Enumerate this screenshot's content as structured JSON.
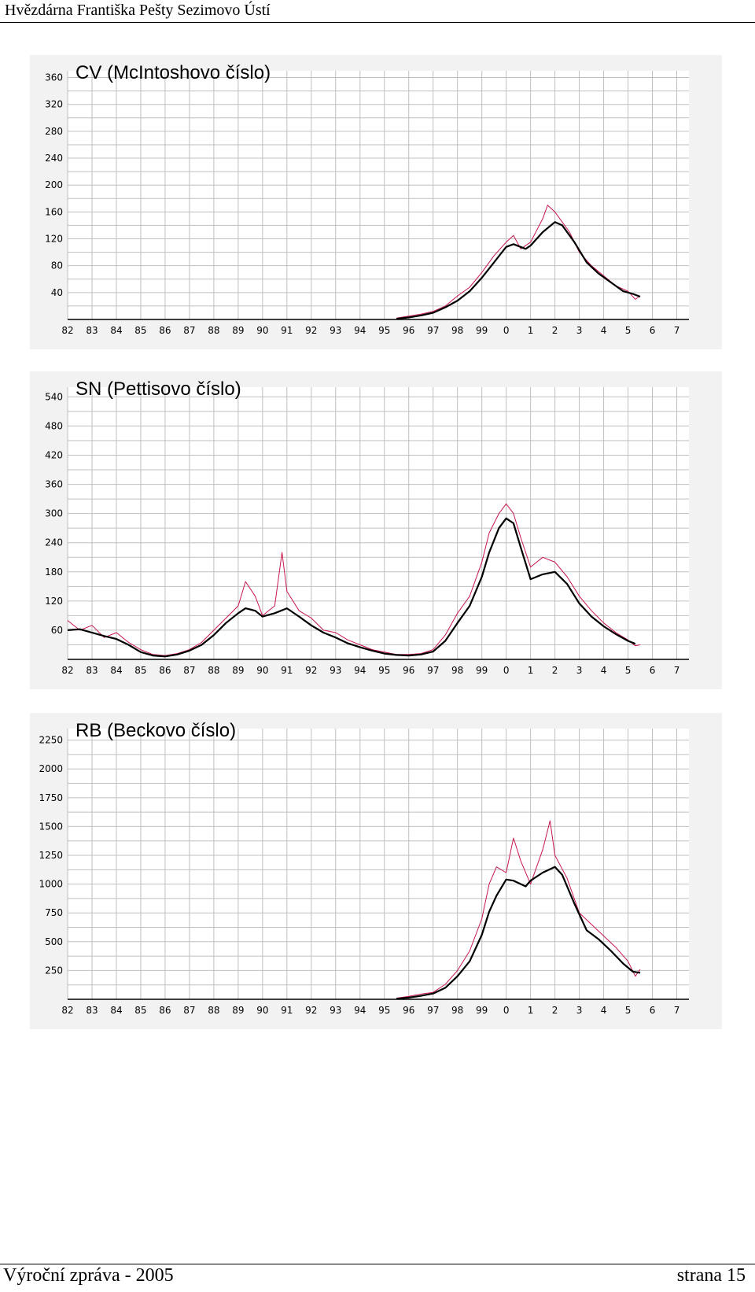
{
  "header": {
    "text": "Hvězdárna Františka Pešty   Sezimovo Ústí"
  },
  "footer": {
    "left": "Výroční zpráva - 2005",
    "right": "strana  15"
  },
  "colors": {
    "raw_series": "#c8174c",
    "smoothed_series": "#000000",
    "grid": "#bfbfbf",
    "plot_bg": "#ffffff"
  },
  "chart_data": [
    {
      "type": "line",
      "title": "CV   (McIntoshovo číslo)",
      "x_tick_labels": [
        "82",
        "83",
        "84",
        "85",
        "86",
        "87",
        "88",
        "89",
        "90",
        "91",
        "92",
        "93",
        "94",
        "95",
        "96",
        "97",
        "98",
        "99",
        "0",
        "1",
        "2",
        "3",
        "4",
        "5",
        "6",
        "7"
      ],
      "xlim": [
        1982,
        2007.5
      ],
      "ylim": [
        0,
        370
      ],
      "y_ticks": [
        40,
        80,
        120,
        160,
        200,
        240,
        280,
        320,
        360
      ],
      "grid": true,
      "series": [
        {
          "role": "monthly",
          "points": [
            [
              1995.5,
              2
            ],
            [
              1996.0,
              5
            ],
            [
              1996.5,
              8
            ],
            [
              1997.0,
              12
            ],
            [
              1997.5,
              20
            ],
            [
              1998.0,
              35
            ],
            [
              1998.5,
              48
            ],
            [
              1999.0,
              70
            ],
            [
              1999.5,
              95
            ],
            [
              2000.0,
              115
            ],
            [
              2000.3,
              125
            ],
            [
              2000.6,
              105
            ],
            [
              2001.0,
              115
            ],
            [
              2001.5,
              150
            ],
            [
              2001.7,
              170
            ],
            [
              2002.0,
              160
            ],
            [
              2002.3,
              145
            ],
            [
              2002.6,
              130
            ],
            [
              2003.0,
              100
            ],
            [
              2003.5,
              80
            ],
            [
              2004.0,
              65
            ],
            [
              2004.5,
              50
            ],
            [
              2005.0,
              42
            ],
            [
              2005.3,
              30
            ],
            [
              2005.5,
              35
            ]
          ]
        },
        {
          "role": "smoothed",
          "points": [
            [
              1995.5,
              1
            ],
            [
              1996.0,
              3
            ],
            [
              1996.5,
              6
            ],
            [
              1997.0,
              10
            ],
            [
              1997.5,
              18
            ],
            [
              1998.0,
              28
            ],
            [
              1998.5,
              42
            ],
            [
              1999.0,
              62
            ],
            [
              1999.5,
              85
            ],
            [
              2000.0,
              108
            ],
            [
              2000.3,
              112
            ],
            [
              2000.8,
              105
            ],
            [
              2001.0,
              110
            ],
            [
              2001.5,
              130
            ],
            [
              2002.0,
              145
            ],
            [
              2002.3,
              140
            ],
            [
              2002.8,
              115
            ],
            [
              2003.3,
              85
            ],
            [
              2003.8,
              68
            ],
            [
              2004.3,
              55
            ],
            [
              2004.8,
              42
            ],
            [
              2005.2,
              38
            ],
            [
              2005.5,
              34
            ]
          ]
        }
      ]
    },
    {
      "type": "line",
      "title": "SN   (Pettisovo číslo)",
      "x_tick_labels": [
        "82",
        "83",
        "84",
        "85",
        "86",
        "87",
        "88",
        "89",
        "90",
        "91",
        "92",
        "93",
        "94",
        "95",
        "96",
        "97",
        "98",
        "99",
        "0",
        "1",
        "2",
        "3",
        "4",
        "5",
        "6",
        "7"
      ],
      "xlim": [
        1982,
        2007.5
      ],
      "ylim": [
        0,
        560
      ],
      "y_ticks": [
        60,
        120,
        180,
        240,
        300,
        360,
        420,
        480,
        540
      ],
      "grid": true,
      "series": [
        {
          "role": "monthly",
          "points": [
            [
              1982.0,
              80
            ],
            [
              1982.5,
              60
            ],
            [
              1983.0,
              70
            ],
            [
              1983.5,
              45
            ],
            [
              1984.0,
              55
            ],
            [
              1984.5,
              35
            ],
            [
              1985.0,
              20
            ],
            [
              1985.5,
              10
            ],
            [
              1986.0,
              8
            ],
            [
              1986.5,
              12
            ],
            [
              1987.0,
              20
            ],
            [
              1987.5,
              35
            ],
            [
              1988.0,
              60
            ],
            [
              1988.5,
              85
            ],
            [
              1989.0,
              110
            ],
            [
              1989.3,
              160
            ],
            [
              1989.7,
              130
            ],
            [
              1990.0,
              90
            ],
            [
              1990.5,
              110
            ],
            [
              1990.8,
              220
            ],
            [
              1991.0,
              140
            ],
            [
              1991.5,
              100
            ],
            [
              1992.0,
              85
            ],
            [
              1992.5,
              60
            ],
            [
              1993.0,
              55
            ],
            [
              1993.5,
              40
            ],
            [
              1994.0,
              30
            ],
            [
              1994.5,
              20
            ],
            [
              1995.0,
              15
            ],
            [
              1995.5,
              10
            ],
            [
              1996.0,
              10
            ],
            [
              1996.5,
              12
            ],
            [
              1997.0,
              20
            ],
            [
              1997.5,
              50
            ],
            [
              1998.0,
              95
            ],
            [
              1998.5,
              130
            ],
            [
              1999.0,
              200
            ],
            [
              1999.3,
              260
            ],
            [
              1999.7,
              300
            ],
            [
              2000.0,
              320
            ],
            [
              2000.3,
              300
            ],
            [
              2000.6,
              250
            ],
            [
              2001.0,
              190
            ],
            [
              2001.5,
              210
            ],
            [
              2002.0,
              200
            ],
            [
              2002.5,
              170
            ],
            [
              2003.0,
              130
            ],
            [
              2003.5,
              100
            ],
            [
              2004.0,
              75
            ],
            [
              2004.5,
              55
            ],
            [
              2005.0,
              40
            ],
            [
              2005.3,
              28
            ],
            [
              2005.5,
              30
            ]
          ]
        },
        {
          "role": "smoothed",
          "points": [
            [
              1982.0,
              60
            ],
            [
              1982.5,
              62
            ],
            [
              1983.0,
              55
            ],
            [
              1983.5,
              48
            ],
            [
              1984.0,
              42
            ],
            [
              1984.5,
              30
            ],
            [
              1985.0,
              15
            ],
            [
              1985.5,
              8
            ],
            [
              1986.0,
              6
            ],
            [
              1986.5,
              10
            ],
            [
              1987.0,
              18
            ],
            [
              1987.5,
              30
            ],
            [
              1988.0,
              50
            ],
            [
              1988.5,
              75
            ],
            [
              1989.0,
              95
            ],
            [
              1989.3,
              105
            ],
            [
              1989.7,
              100
            ],
            [
              1990.0,
              88
            ],
            [
              1990.5,
              95
            ],
            [
              1991.0,
              105
            ],
            [
              1991.5,
              88
            ],
            [
              1992.0,
              70
            ],
            [
              1992.5,
              55
            ],
            [
              1993.0,
              45
            ],
            [
              1993.5,
              33
            ],
            [
              1994.0,
              25
            ],
            [
              1994.5,
              18
            ],
            [
              1995.0,
              12
            ],
            [
              1995.5,
              9
            ],
            [
              1996.0,
              8
            ],
            [
              1996.5,
              10
            ],
            [
              1997.0,
              16
            ],
            [
              1997.5,
              38
            ],
            [
              1998.0,
              75
            ],
            [
              1998.5,
              110
            ],
            [
              1999.0,
              170
            ],
            [
              1999.3,
              220
            ],
            [
              1999.7,
              270
            ],
            [
              2000.0,
              290
            ],
            [
              2000.3,
              280
            ],
            [
              2000.6,
              230
            ],
            [
              2001.0,
              165
            ],
            [
              2001.5,
              175
            ],
            [
              2002.0,
              180
            ],
            [
              2002.5,
              155
            ],
            [
              2003.0,
              115
            ],
            [
              2003.5,
              88
            ],
            [
              2004.0,
              68
            ],
            [
              2004.5,
              52
            ],
            [
              2005.0,
              38
            ],
            [
              2005.3,
              32
            ]
          ]
        }
      ]
    },
    {
      "type": "line",
      "title": "RB   (Beckovo číslo)",
      "x_tick_labels": [
        "82",
        "83",
        "84",
        "85",
        "86",
        "87",
        "88",
        "89",
        "90",
        "91",
        "92",
        "93",
        "94",
        "95",
        "96",
        "97",
        "98",
        "99",
        "0",
        "1",
        "2",
        "3",
        "4",
        "5",
        "6",
        "7"
      ],
      "xlim": [
        1982,
        2007.5
      ],
      "ylim": [
        0,
        2350
      ],
      "y_ticks": [
        250,
        500,
        750,
        1000,
        1250,
        1500,
        1750,
        2000,
        2250
      ],
      "grid": true,
      "series": [
        {
          "role": "monthly",
          "points": [
            [
              1995.5,
              10
            ],
            [
              1996.0,
              25
            ],
            [
              1996.5,
              45
            ],
            [
              1997.0,
              60
            ],
            [
              1997.5,
              130
            ],
            [
              1998.0,
              250
            ],
            [
              1998.5,
              420
            ],
            [
              1999.0,
              700
            ],
            [
              1999.3,
              1000
            ],
            [
              1999.6,
              1150
            ],
            [
              2000.0,
              1100
            ],
            [
              2000.3,
              1400
            ],
            [
              2000.6,
              1200
            ],
            [
              2001.0,
              1000
            ],
            [
              2001.5,
              1300
            ],
            [
              2001.8,
              1550
            ],
            [
              2002.0,
              1250
            ],
            [
              2002.5,
              1050
            ],
            [
              2003.0,
              750
            ],
            [
              2003.5,
              650
            ],
            [
              2004.0,
              550
            ],
            [
              2004.5,
              450
            ],
            [
              2005.0,
              330
            ],
            [
              2005.3,
              200
            ],
            [
              2005.5,
              260
            ]
          ]
        },
        {
          "role": "smoothed",
          "points": [
            [
              1995.5,
              5
            ],
            [
              1996.0,
              15
            ],
            [
              1996.5,
              30
            ],
            [
              1997.0,
              50
            ],
            [
              1997.5,
              100
            ],
            [
              1998.0,
              200
            ],
            [
              1998.5,
              330
            ],
            [
              1999.0,
              560
            ],
            [
              1999.3,
              760
            ],
            [
              1999.6,
              900
            ],
            [
              2000.0,
              1040
            ],
            [
              2000.3,
              1030
            ],
            [
              2000.8,
              980
            ],
            [
              2001.0,
              1030
            ],
            [
              2001.5,
              1100
            ],
            [
              2002.0,
              1150
            ],
            [
              2002.3,
              1080
            ],
            [
              2002.8,
              830
            ],
            [
              2003.3,
              600
            ],
            [
              2003.8,
              520
            ],
            [
              2004.3,
              420
            ],
            [
              2004.8,
              310
            ],
            [
              2005.2,
              240
            ],
            [
              2005.5,
              230
            ]
          ]
        }
      ]
    }
  ]
}
